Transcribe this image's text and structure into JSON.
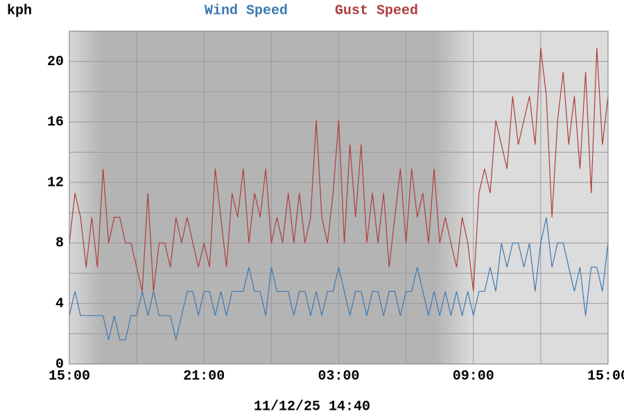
{
  "chart_data": {
    "type": "line",
    "y_label": "kph",
    "footer": "11/12/25 14:40",
    "x": [
      0,
      0.25,
      0.5,
      0.75,
      1,
      1.25,
      1.5,
      1.75,
      2,
      2.25,
      2.5,
      2.75,
      3,
      3.25,
      3.5,
      3.75,
      4,
      4.25,
      4.5,
      4.75,
      5,
      5.25,
      5.5,
      5.75,
      6,
      6.25,
      6.5,
      6.75,
      7,
      7.25,
      7.5,
      7.75,
      8,
      8.25,
      8.5,
      8.75,
      9,
      9.25,
      9.5,
      9.75,
      10,
      10.25,
      10.5,
      10.75,
      11,
      11.25,
      11.5,
      11.75,
      12,
      12.25,
      12.5,
      12.75,
      13,
      13.25,
      13.5,
      13.75,
      14,
      14.25,
      14.5,
      14.75,
      15,
      15.25,
      15.5,
      15.75,
      16,
      16.25,
      16.5,
      16.75,
      17,
      17.25,
      17.5,
      17.75,
      18,
      18.25,
      18.5,
      18.75,
      19,
      19.25,
      19.5,
      19.75,
      20,
      20.25,
      20.5,
      20.75,
      21,
      21.25,
      21.5,
      21.75,
      22,
      22.25,
      22.5,
      22.75,
      23,
      23.25,
      23.5,
      23.75,
      24
    ],
    "series": [
      {
        "name": "Wind Speed",
        "color": "#3b78b1",
        "values": [
          3.2,
          4.8,
          3.2,
          3.2,
          3.2,
          3.2,
          3.2,
          1.6,
          3.2,
          1.6,
          1.6,
          3.2,
          3.2,
          4.8,
          3.2,
          4.8,
          3.2,
          3.2,
          3.2,
          1.6,
          3.2,
          4.8,
          4.8,
          3.2,
          4.8,
          4.8,
          3.2,
          4.8,
          3.2,
          4.8,
          4.8,
          4.8,
          6.4,
          4.8,
          4.8,
          3.2,
          6.4,
          4.8,
          4.8,
          4.8,
          3.2,
          4.8,
          4.8,
          3.2,
          4.8,
          3.2,
          4.8,
          4.8,
          6.4,
          4.8,
          3.2,
          4.8,
          4.8,
          3.2,
          4.8,
          4.8,
          3.2,
          4.8,
          4.8,
          3.2,
          4.8,
          4.8,
          6.4,
          4.8,
          3.2,
          4.8,
          3.2,
          4.8,
          3.2,
          4.8,
          3.2,
          4.8,
          3.2,
          4.8,
          4.8,
          6.4,
          4.8,
          8.0,
          6.4,
          8.0,
          8.0,
          6.4,
          8.0,
          4.8,
          8.0,
          9.7,
          6.4,
          8.0,
          8.0,
          6.4,
          4.8,
          6.4,
          3.2,
          6.4,
          6.4,
          4.8,
          8.0
        ]
      },
      {
        "name": "Gust Speed",
        "color": "#b03c3c",
        "values": [
          8.0,
          11.3,
          9.7,
          6.4,
          9.7,
          6.4,
          12.9,
          8.0,
          9.7,
          9.7,
          8.0,
          8.0,
          6.4,
          4.8,
          11.3,
          4.8,
          8.0,
          8.0,
          6.4,
          9.7,
          8.0,
          9.7,
          8.0,
          6.4,
          8.0,
          6.4,
          12.9,
          9.7,
          6.4,
          11.3,
          9.7,
          12.9,
          8.0,
          11.3,
          9.7,
          12.9,
          8.0,
          9.7,
          8.0,
          11.3,
          8.0,
          11.3,
          8.0,
          9.7,
          16.1,
          9.7,
          8.0,
          11.3,
          16.1,
          8.0,
          14.5,
          9.7,
          14.5,
          8.0,
          11.3,
          8.0,
          11.3,
          6.4,
          9.7,
          12.9,
          8.0,
          12.9,
          9.7,
          11.3,
          8.0,
          12.9,
          8.0,
          9.7,
          8.0,
          6.4,
          9.7,
          8.0,
          4.8,
          11.3,
          12.9,
          11.3,
          16.1,
          14.5,
          12.9,
          17.7,
          14.5,
          16.1,
          17.7,
          14.5,
          20.9,
          17.7,
          9.7,
          16.1,
          19.3,
          14.5,
          17.7,
          12.9,
          19.3,
          11.3,
          20.9,
          14.5,
          17.7
        ]
      }
    ],
    "xlim": [
      0,
      24
    ],
    "xticks": [
      {
        "value": 0,
        "label": "15:00"
      },
      {
        "value": 6,
        "label": "21:00"
      },
      {
        "value": 12,
        "label": "03:00"
      },
      {
        "value": 18,
        "label": "09:00"
      },
      {
        "value": 24,
        "label": "15:00"
      }
    ],
    "xminor": [
      3,
      9,
      15,
      21
    ],
    "ylim": [
      0,
      22
    ],
    "yticks": [
      0,
      4,
      8,
      12,
      16,
      20
    ],
    "yminor": [
      2,
      6,
      10,
      14,
      18
    ],
    "grid": true
  }
}
